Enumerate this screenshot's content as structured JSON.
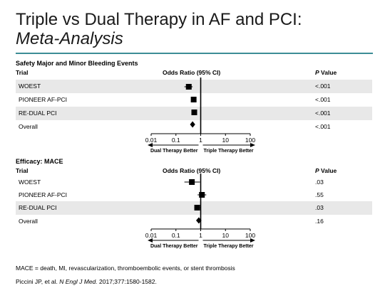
{
  "slide": {
    "title": "Triple vs Dual Therapy in AF and PCI:",
    "subtitle": "Meta-Analysis",
    "footnote": "MACE = death, MI, revascularization, thromboembolic events, or stent thrombosis",
    "citation": {
      "authors": "Piccini JP, et al. ",
      "journal": "N Engl J Med.",
      "details": " 2017;377:1580-1582."
    }
  },
  "colors": {
    "accent_rule": "#3d8d96",
    "row_shade": "#e8e8e8",
    "marker": "#000000"
  },
  "chart_data": [
    {
      "type": "forest",
      "title": "Safety Major and Minor Bleeding Events",
      "col_trial": "Trial",
      "col_or": "Odds Ratio (95% CI)",
      "col_p_italic": "P",
      "col_p_rest": " Value",
      "x_scale": "log",
      "xlim": [
        0.01,
        100
      ],
      "ticks": [
        0.01,
        0.1,
        1,
        10,
        100
      ],
      "tick_labels": [
        "0.01",
        "0.1",
        "1",
        "10",
        "100"
      ],
      "left_label": "Dual Therapy Better",
      "right_label": "Triple Therapy Better",
      "rows": [
        {
          "trial": "WOEST",
          "or": 0.33,
          "lo": 0.22,
          "hi": 0.47,
          "p": "<.001",
          "marker": "square",
          "shaded": true
        },
        {
          "trial": "PIONEER AF-PCI",
          "or": 0.52,
          "lo": 0.42,
          "hi": 0.65,
          "p": "<.001",
          "marker": "square",
          "shaded": false
        },
        {
          "trial": "RE-DUAL PCI",
          "or": 0.55,
          "lo": 0.45,
          "hi": 0.66,
          "p": "<.001",
          "marker": "square",
          "shaded": true
        },
        {
          "trial": "Overall",
          "or": 0.47,
          "lo": 0.37,
          "hi": 0.6,
          "p": "<.001",
          "marker": "diamond",
          "shaded": false
        }
      ]
    },
    {
      "type": "forest",
      "title": "Efficacy: MACE",
      "col_trial": "Trial",
      "col_or": "Odds Ratio (95% CI)",
      "col_p_italic": "P",
      "col_p_rest": " Value",
      "x_scale": "log",
      "xlim": [
        0.01,
        100
      ],
      "ticks": [
        0.01,
        0.1,
        1,
        10,
        100
      ],
      "tick_labels": [
        "0.01",
        "0.1",
        "1",
        "10",
        "100"
      ],
      "left_label": "Dual Therapy Better",
      "right_label": "Triple Therapy Better",
      "rows": [
        {
          "trial": "WOEST",
          "or": 0.44,
          "lo": 0.22,
          "hi": 0.93,
          "p": ".03",
          "marker": "square",
          "shaded": false
        },
        {
          "trial": "PIONEER AF-PCI",
          "or": 1.12,
          "lo": 0.75,
          "hi": 1.68,
          "p": ".55",
          "marker": "square",
          "shaded": false
        },
        {
          "trial": "RE-DUAL PCI",
          "or": 0.72,
          "lo": 0.55,
          "hi": 0.96,
          "p": ".03",
          "marker": "square",
          "shaded": true
        },
        {
          "trial": "Overall",
          "or": 0.84,
          "lo": 0.65,
          "hi": 1.08,
          "p": ".16",
          "marker": "diamond",
          "shaded": false
        }
      ]
    }
  ]
}
